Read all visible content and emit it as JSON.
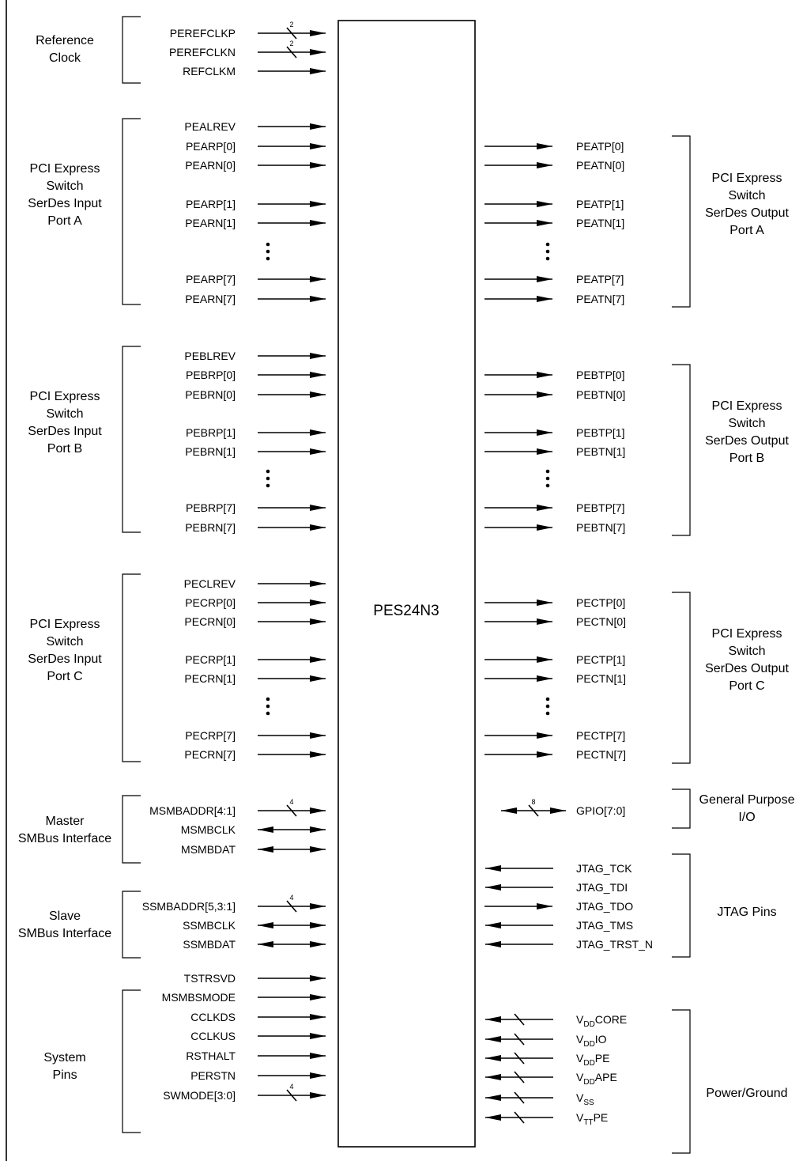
{
  "chip": {
    "name": "PES24N3"
  },
  "left_groups": [
    {
      "label_lines": [
        "Reference",
        "Clock"
      ],
      "signals": [
        "PEREFCLKP",
        "PEREFCLKN",
        "REFCLKM"
      ],
      "buses": [
        "2",
        "2",
        ""
      ],
      "dirs": [
        "in",
        "in",
        "in"
      ]
    },
    {
      "label_lines": [
        "PCI Express",
        "Switch",
        "SerDes Input",
        "Port A"
      ],
      "signals": [
        "PEALREV",
        "PEARP[0]",
        "PEARN[0]",
        "PEARP[1]",
        "PEARN[1]",
        "PEARP[7]",
        "PEARN[7]"
      ],
      "buses": [
        "",
        "",
        "",
        "",
        "",
        "",
        ""
      ],
      "dirs": [
        "in",
        "in",
        "in",
        "in",
        "in",
        "in",
        "in"
      ]
    },
    {
      "label_lines": [
        "PCI Express",
        "Switch",
        "SerDes Input",
        "Port B"
      ],
      "signals": [
        "PEBLREV",
        "PEBRP[0]",
        "PEBRN[0]",
        "PEBRP[1]",
        "PEBRN[1]",
        "PEBRP[7]",
        "PEBRN[7]"
      ],
      "buses": [
        "",
        "",
        "",
        "",
        "",
        "",
        ""
      ],
      "dirs": [
        "in",
        "in",
        "in",
        "in",
        "in",
        "in",
        "in"
      ]
    },
    {
      "label_lines": [
        "PCI Express",
        "Switch",
        "SerDes Input",
        "Port C"
      ],
      "signals": [
        "PECLREV",
        "PECRP[0]",
        "PECRN[0]",
        "PECRP[1]",
        "PECRN[1]",
        "PECRP[7]",
        "PECRN[7]"
      ],
      "buses": [
        "",
        "",
        "",
        "",
        "",
        "",
        ""
      ],
      "dirs": [
        "in",
        "in",
        "in",
        "in",
        "in",
        "in",
        "in"
      ]
    },
    {
      "label_lines": [
        "Master",
        "SMBus Interface"
      ],
      "signals": [
        "MSMBADDR[4:1]",
        "MSMBCLK",
        "MSMBDAT"
      ],
      "buses": [
        "4",
        "",
        ""
      ],
      "dirs": [
        "in",
        "bi",
        "bi"
      ]
    },
    {
      "label_lines": [
        "Slave",
        "SMBus Interface"
      ],
      "signals": [
        "SSMBADDR[5,3:1]",
        "SSMBCLK",
        "SSMBDAT"
      ],
      "buses": [
        "4",
        "",
        ""
      ],
      "dirs": [
        "in",
        "bi",
        "bi"
      ]
    },
    {
      "label_lines": [
        "System",
        "Pins"
      ],
      "signals": [
        "TSTRSVD",
        "MSMBSMODE",
        "CCLKDS",
        "CCLKUS",
        "RSTHALT",
        "PERSTN",
        "SWMODE[3:0]"
      ],
      "buses": [
        "",
        "",
        "",
        "",
        "",
        "",
        "4"
      ],
      "dirs": [
        "in",
        "in",
        "in",
        "in",
        "in",
        "in",
        "in"
      ]
    }
  ],
  "right_groups": [
    {
      "label_lines": [
        "PCI Express",
        "Switch",
        "SerDes Output",
        "Port A"
      ],
      "signals": [
        "PEATP[0]",
        "PEATN[0]",
        "PEATP[1]",
        "PEATN[1]",
        "PEATP[7]",
        "PEATN[7]"
      ],
      "dirs": [
        "out",
        "out",
        "out",
        "out",
        "out",
        "out"
      ]
    },
    {
      "label_lines": [
        "PCI Express",
        "Switch",
        "SerDes Output",
        "Port B"
      ],
      "signals": [
        "PEBTP[0]",
        "PEBTN[0]",
        "PEBTP[1]",
        "PEBTN[1]",
        "PEBTP[7]",
        "PEBTN[7]"
      ],
      "dirs": [
        "out",
        "out",
        "out",
        "out",
        "out",
        "out"
      ]
    },
    {
      "label_lines": [
        "PCI Express",
        "Switch",
        "SerDes Output",
        "Port C"
      ],
      "signals": [
        "PECTP[0]",
        "PECTN[0]",
        "PECTP[1]",
        "PECTN[1]",
        "PECTP[7]",
        "PECTN[7]"
      ],
      "dirs": [
        "out",
        "out",
        "out",
        "out",
        "out",
        "out"
      ]
    },
    {
      "label_lines": [
        "General Purpose",
        "I/O"
      ],
      "signals": [
        "GPIO[7:0]"
      ],
      "bus": "8",
      "dirs": [
        "bi"
      ]
    },
    {
      "label_lines": [
        "JTAG Pins"
      ],
      "signals": [
        "JTAG_TCK",
        "JTAG_TDI",
        "JTAG_TDO",
        "JTAG_TMS",
        "JTAG_TRST_N"
      ],
      "dirs": [
        "in",
        "in",
        "out",
        "in",
        "in"
      ]
    },
    {
      "label_lines": [
        "Power/Ground"
      ],
      "signals": [
        {
          "main": "V",
          "sub": "DD",
          "suffix": "CORE"
        },
        {
          "main": "V",
          "sub": "DD",
          "suffix": "IO"
        },
        {
          "main": "V",
          "sub": "DD",
          "suffix": "PE"
        },
        {
          "main": "V",
          "sub": "DD",
          "suffix": "APE"
        },
        {
          "main": "V",
          "sub": "SS",
          "suffix": ""
        },
        {
          "main": "V",
          "sub": "TT",
          "suffix": "PE"
        }
      ],
      "dirs": [
        "in",
        "in",
        "in",
        "in",
        "in",
        "in"
      ]
    }
  ]
}
